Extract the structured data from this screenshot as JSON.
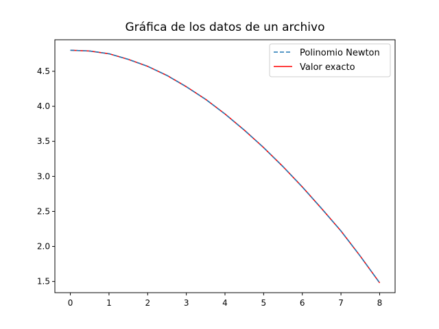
{
  "chart_data": {
    "type": "line",
    "title": "Gráfica de los datos de un archivo",
    "xlabel": "",
    "ylabel": "",
    "xlim": [
      -0.4,
      8.4
    ],
    "ylim": [
      1.34,
      4.95
    ],
    "xticks": [
      0,
      1,
      2,
      3,
      4,
      5,
      6,
      7,
      8
    ],
    "yticks": [
      1.5,
      2.0,
      2.5,
      3.0,
      3.5,
      4.0,
      4.5
    ],
    "ytick_labels": [
      "1.5",
      "2.0",
      "2.5",
      "3.0",
      "3.5",
      "4.0",
      "4.5"
    ],
    "grid": false,
    "legend_position": "top-right",
    "series": [
      {
        "name": "Polinomio Newton",
        "style": "dashed",
        "color": "#1f77b4",
        "x": [
          0,
          0.5,
          1,
          1.5,
          2,
          2.5,
          3,
          3.5,
          4,
          4.5,
          5,
          5.5,
          6,
          6.5,
          7,
          7.5,
          8
        ],
        "y": [
          4.8,
          4.79,
          4.75,
          4.67,
          4.57,
          4.44,
          4.28,
          4.1,
          3.89,
          3.66,
          3.41,
          3.14,
          2.85,
          2.54,
          2.22,
          1.86,
          1.48
        ]
      },
      {
        "name": "Valor exacto",
        "style": "solid",
        "color": "#ff0000",
        "x": [
          0,
          0.5,
          1,
          1.5,
          2,
          2.5,
          3,
          3.5,
          4,
          4.5,
          5,
          5.5,
          6,
          6.5,
          7,
          7.5,
          8
        ],
        "y": [
          4.8,
          4.79,
          4.75,
          4.67,
          4.57,
          4.44,
          4.28,
          4.1,
          3.89,
          3.66,
          3.41,
          3.14,
          2.85,
          2.54,
          2.22,
          1.86,
          1.48
        ]
      }
    ]
  }
}
